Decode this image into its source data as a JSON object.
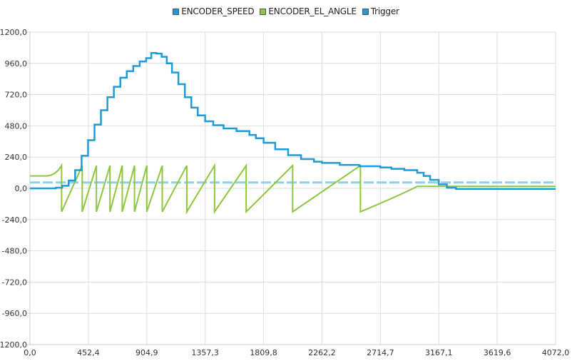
{
  "legend": {
    "items": [
      {
        "label": "ENCODER_SPEED",
        "color": "#1e9bd7"
      },
      {
        "label": "ENCODER_EL_ANGLE",
        "color": "#8dc63f"
      },
      {
        "label": "Trigger",
        "color": "#1e9bd7"
      }
    ]
  },
  "chart_data": {
    "type": "line",
    "title": "",
    "xlabel": "",
    "ylabel": "",
    "xlim": [
      0,
      4072.0
    ],
    "ylim": [
      -1200,
      1200
    ],
    "grid": true,
    "legend_position": "top",
    "x_ticks": [
      "0,0",
      "452,4",
      "904,9",
      "1357,3",
      "1809,8",
      "2262,2",
      "2714,7",
      "3167,1",
      "3619,6",
      "4072,0"
    ],
    "y_ticks": [
      "1200,0",
      "960,0",
      "720,0",
      "480,0",
      "240,0",
      "0,0",
      "-240,0",
      "-480,0",
      "-720,0",
      "-960,0",
      "-1200,0"
    ],
    "series": [
      {
        "name": "ENCODER_SPEED",
        "color": "#1e9bd7",
        "style": "stepped-solid",
        "x": [
          0,
          120,
          200,
          250,
          300,
          350,
          400,
          450,
          500,
          550,
          600,
          650,
          700,
          750,
          800,
          850,
          900,
          940,
          980,
          1020,
          1060,
          1100,
          1150,
          1200,
          1250,
          1300,
          1357,
          1420,
          1500,
          1600,
          1700,
          1750,
          1810,
          1900,
          2000,
          2100,
          2200,
          2262,
          2400,
          2550,
          2714,
          2800,
          2900,
          3000,
          3050,
          3100,
          3167,
          3230,
          3300,
          3400,
          3620,
          4072
        ],
        "y": [
          0,
          0,
          5,
          20,
          60,
          140,
          250,
          370,
          490,
          600,
          700,
          780,
          850,
          900,
          940,
          975,
          1000,
          1040,
          1035,
          1010,
          960,
          890,
          800,
          700,
          620,
          560,
          515,
          485,
          460,
          440,
          410,
          385,
          350,
          300,
          255,
          225,
          205,
          195,
          180,
          170,
          160,
          150,
          140,
          120,
          95,
          65,
          30,
          5,
          -5,
          -5,
          -5,
          -5
        ]
      },
      {
        "name": "ENCODER_EL_ANGLE",
        "color": "#8dc63f",
        "style": "solid",
        "description": "sawtooth between ~-180 and ~180 with decreasing frequency, settling at ~15",
        "x": [
          0,
          130,
          200,
          240,
          250,
          400,
          460,
          510,
          560,
          610,
          660,
          700,
          780,
          910,
          1020,
          1240,
          1470,
          1800,
          2200,
          2580,
          2900,
          3000,
          3167,
          4072
        ],
        "y": [
          95,
          95,
          120,
          175,
          -180,
          175,
          -180,
          175,
          -180,
          175,
          -180,
          175,
          -180,
          175,
          -180,
          175,
          -180,
          175,
          -180,
          175,
          -180,
          15,
          15,
          15
        ],
        "drop_points_x": [
          245,
          405,
          515,
          620,
          715,
          810,
          905,
          1025,
          1215,
          1430,
          1675,
          2035,
          2560
        ]
      },
      {
        "name": "Trigger",
        "color": "#8ecfea",
        "style": "dashed",
        "x": [
          0,
          4072
        ],
        "y": [
          45,
          45
        ]
      }
    ]
  }
}
